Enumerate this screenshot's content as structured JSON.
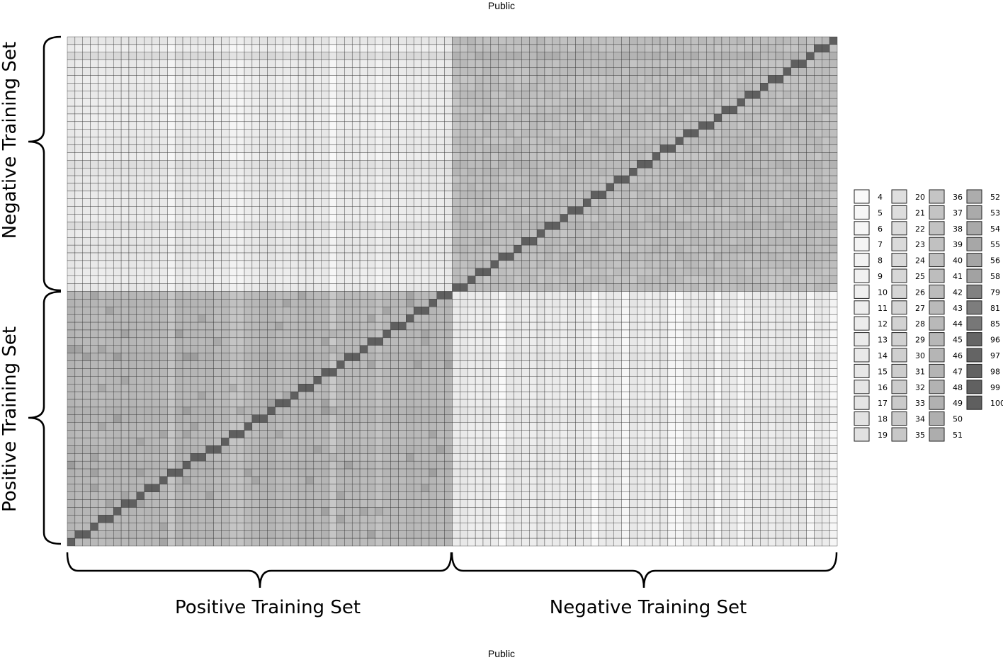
{
  "header": {
    "marking": "Public"
  },
  "footer": {
    "marking": "Public"
  },
  "chart_data": {
    "type": "heatmap",
    "title": "",
    "grid": true,
    "grid_size": [
      100,
      66
    ],
    "groups": {
      "positive_training_set": 50,
      "negative_training_set": 50
    },
    "axes": {
      "x_groups": [
        "Positive Training Set",
        "Negative Training Set"
      ],
      "y_groups_top_to_bottom": [
        "Negative Training Set",
        "Positive Training Set"
      ]
    },
    "block_typical_values": {
      "positive_vs_positive": 45,
      "negative_vs_negative": 41,
      "positive_vs_negative": 14,
      "diagonal": 100
    },
    "legend": {
      "placement": "right",
      "columns": [
        [
          "4",
          "5",
          "6",
          "7",
          "8",
          "9",
          "10",
          "11",
          "12",
          "13",
          "14",
          "15",
          "16",
          "17",
          "18",
          "19"
        ],
        [
          "20",
          "21",
          "22",
          "23",
          "24",
          "25",
          "26",
          "27",
          "28",
          "29",
          "30",
          "31",
          "32",
          "33",
          "34",
          "35"
        ],
        [
          "36",
          "37",
          "38",
          "39",
          "40",
          "41",
          "42",
          "43",
          "44",
          "45",
          "46",
          "47",
          "48",
          "49",
          "50",
          "51"
        ],
        [
          "52",
          "53",
          "54",
          "55",
          "56",
          "58",
          "79",
          "81",
          "85",
          "96",
          "97",
          "98",
          "99",
          "100"
        ]
      ]
    },
    "color_scale": {
      "low": "#ffffff",
      "high": "#5f5f5f"
    }
  }
}
